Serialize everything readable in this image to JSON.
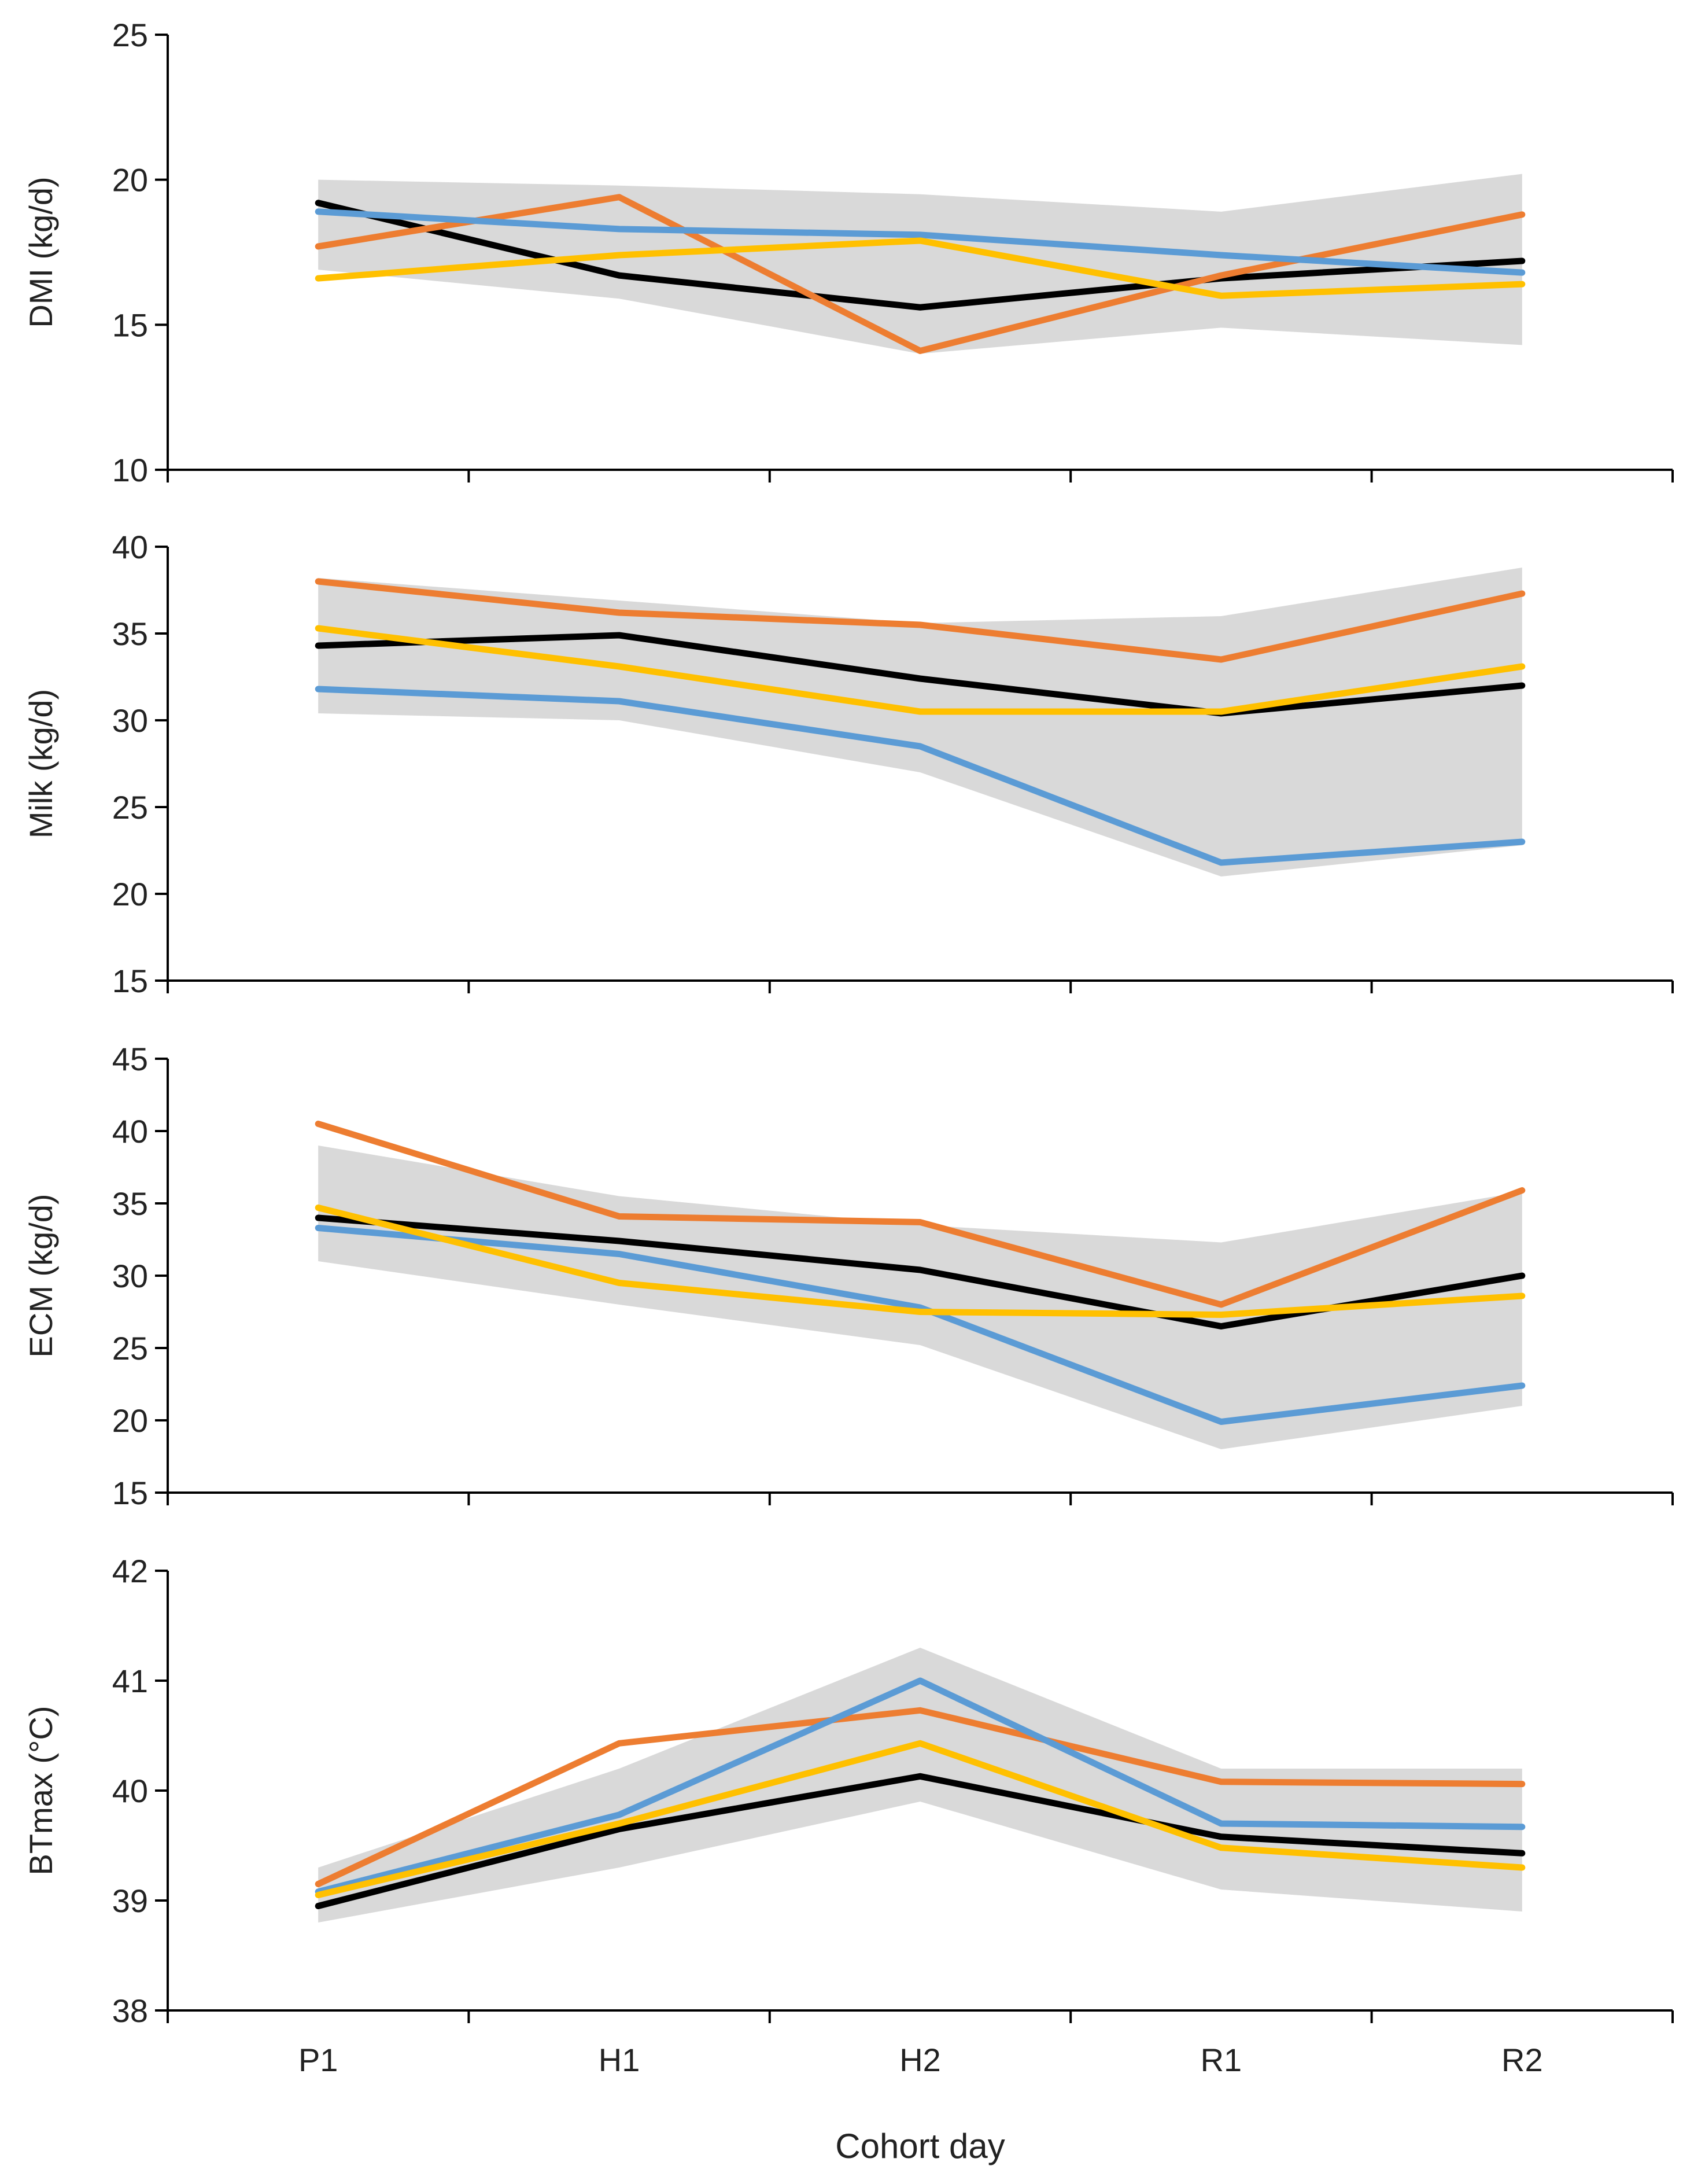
{
  "chart_data": [
    {
      "type": "line",
      "ylabel": "DMI (kg/d)",
      "xlabel": "",
      "categories": [
        "P1",
        "H1",
        "H2",
        "R1",
        "R2"
      ],
      "ylim": [
        10,
        25
      ],
      "yticks": [
        10,
        15,
        20,
        25
      ],
      "grid": false,
      "band": {
        "lower": [
          16.9,
          15.9,
          14.0,
          14.9,
          14.3
        ],
        "upper": [
          20.0,
          19.8,
          19.5,
          18.9,
          20.2
        ]
      },
      "series": [
        {
          "name": "black",
          "color": "#000000",
          "values": [
            19.2,
            16.7,
            15.6,
            16.6,
            17.2
          ]
        },
        {
          "name": "orange",
          "color": "#ED7D31",
          "values": [
            17.7,
            19.4,
            14.1,
            16.7,
            18.8
          ]
        },
        {
          "name": "blue",
          "color": "#5B9BD5",
          "values": [
            18.9,
            18.3,
            18.1,
            17.4,
            16.8
          ]
        },
        {
          "name": "yellow",
          "color": "#FFC000",
          "values": [
            16.6,
            17.4,
            17.9,
            16.0,
            16.4
          ]
        }
      ]
    },
    {
      "type": "line",
      "ylabel": "Milk (kg/d)",
      "xlabel": "",
      "categories": [
        "P1",
        "H1",
        "H2",
        "R1",
        "R2"
      ],
      "ylim": [
        15,
        40
      ],
      "yticks": [
        15,
        20,
        25,
        30,
        35,
        40
      ],
      "grid": false,
      "band": {
        "lower": [
          30.4,
          30.0,
          27.0,
          21.0,
          22.8
        ],
        "upper": [
          38.2,
          36.9,
          35.6,
          36.0,
          38.8
        ]
      },
      "series": [
        {
          "name": "black",
          "color": "#000000",
          "values": [
            34.3,
            34.9,
            32.4,
            30.4,
            32.0
          ]
        },
        {
          "name": "orange",
          "color": "#ED7D31",
          "values": [
            38.0,
            36.2,
            35.5,
            33.5,
            37.3
          ]
        },
        {
          "name": "blue",
          "color": "#5B9BD5",
          "values": [
            31.8,
            31.1,
            28.5,
            21.8,
            23.0
          ]
        },
        {
          "name": "yellow",
          "color": "#FFC000",
          "values": [
            35.3,
            33.1,
            30.5,
            30.5,
            33.1
          ]
        }
      ]
    },
    {
      "type": "line",
      "ylabel": "ECM (kg/d)",
      "xlabel": "",
      "categories": [
        "P1",
        "H1",
        "H2",
        "R1",
        "R2"
      ],
      "ylim": [
        15,
        45
      ],
      "yticks": [
        15,
        20,
        25,
        30,
        35,
        40,
        45
      ],
      "grid": false,
      "band": {
        "lower": [
          31.0,
          28.0,
          25.2,
          18.0,
          21.0
        ],
        "upper": [
          39.0,
          35.5,
          33.5,
          32.3,
          35.8
        ]
      },
      "series": [
        {
          "name": "black",
          "color": "#000000",
          "values": [
            34.0,
            32.4,
            30.4,
            26.5,
            30.0
          ]
        },
        {
          "name": "orange",
          "color": "#ED7D31",
          "values": [
            40.5,
            34.1,
            33.7,
            28.0,
            35.9
          ]
        },
        {
          "name": "blue",
          "color": "#5B9BD5",
          "values": [
            33.3,
            31.5,
            27.8,
            19.9,
            22.4
          ]
        },
        {
          "name": "yellow",
          "color": "#FFC000",
          "values": [
            34.7,
            29.5,
            27.5,
            27.3,
            28.6
          ]
        }
      ]
    },
    {
      "type": "line",
      "ylabel": "BTmax (°C)",
      "xlabel": "Cohort day",
      "categories": [
        "P1",
        "H1",
        "H2",
        "R1",
        "R2"
      ],
      "ylim": [
        38,
        42
      ],
      "yticks": [
        38,
        39,
        40,
        41,
        42
      ],
      "grid": false,
      "band": {
        "lower": [
          38.8,
          39.3,
          39.9,
          39.1,
          38.9
        ],
        "upper": [
          39.3,
          40.2,
          41.3,
          40.2,
          40.2
        ]
      },
      "series": [
        {
          "name": "black",
          "color": "#000000",
          "values": [
            38.95,
            39.65,
            40.13,
            39.58,
            39.43
          ]
        },
        {
          "name": "orange",
          "color": "#ED7D31",
          "values": [
            39.15,
            40.43,
            40.73,
            40.08,
            40.06
          ]
        },
        {
          "name": "blue",
          "color": "#5B9BD5",
          "values": [
            39.08,
            39.78,
            41.0,
            39.7,
            39.67
          ]
        },
        {
          "name": "yellow",
          "color": "#FFC000",
          "values": [
            39.05,
            39.7,
            40.43,
            39.48,
            39.3
          ]
        }
      ]
    }
  ],
  "style": {
    "band_color": "#D9D9D9",
    "axis_color": "#000000"
  }
}
